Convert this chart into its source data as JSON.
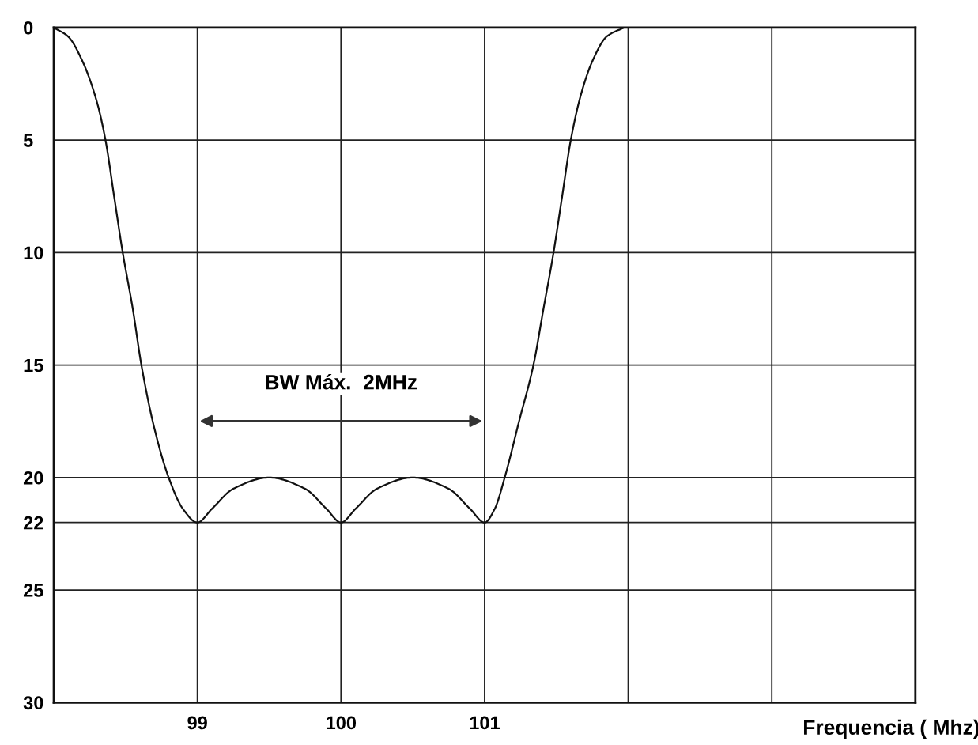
{
  "chart_data": {
    "type": "line",
    "xlabel": "Frequencia ( Mhz)",
    "x": [
      98,
      98.1,
      98.2,
      98.3,
      98.36,
      98.42,
      98.48,
      98.55,
      98.61,
      98.7,
      98.8,
      98.9,
      99,
      99.1,
      99.25,
      99.5,
      99.75,
      99.9,
      100,
      100.1,
      100.25,
      100.5,
      100.75,
      100.9,
      101,
      101.07,
      101.14,
      101.24,
      101.34,
      101.41,
      101.48,
      101.54,
      101.6,
      101.67,
      101.75,
      101.85,
      101.97
    ],
    "series": [
      {
        "color": "#111111",
        "values": [
          0,
          0.4,
          1.5,
          3.3,
          5,
          7.5,
          10,
          12.5,
          15,
          17.8,
          20,
          21.4,
          22,
          21.4,
          20.5,
          20,
          20.5,
          21.4,
          22,
          21.4,
          20.5,
          20,
          20.5,
          21.4,
          22,
          21.4,
          20,
          17.5,
          15,
          12.5,
          10,
          7.5,
          5,
          3,
          1.5,
          0.4,
          0
        ]
      }
    ],
    "annotations": [
      "BW Máx.  2MHz"
    ],
    "xlim": [
      98,
      104
    ],
    "xticks": [
      {
        "value": 98,
        "label": null
      },
      99,
      100,
      101,
      {
        "value": 102,
        "label": null
      },
      {
        "value": 103,
        "label": null
      },
      {
        "value": 104,
        "label": null
      }
    ],
    "ylim": [
      30,
      0
    ],
    "yticks": [
      0,
      5,
      10,
      15,
      20,
      22,
      25,
      30
    ],
    "grid": true,
    "marker": "none",
    "line_style": "solid"
  }
}
